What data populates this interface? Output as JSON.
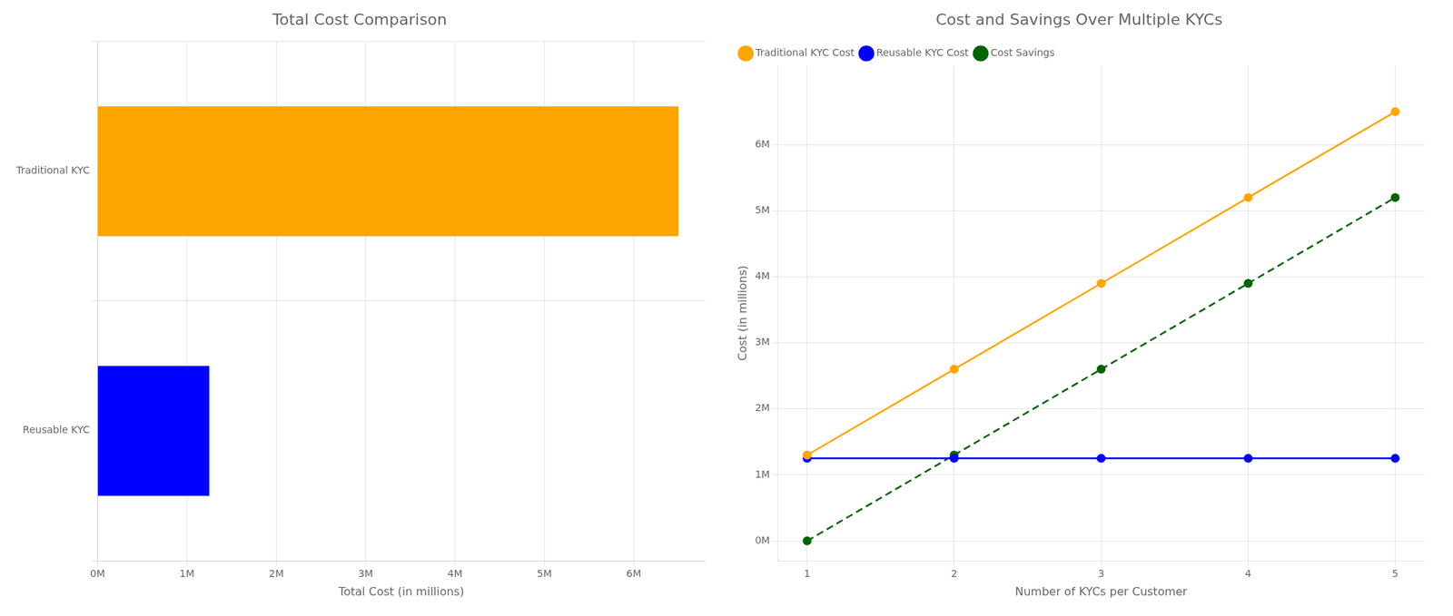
{
  "chart_data": [
    {
      "type": "bar",
      "title": "Total Cost Comparison",
      "orientation": "horizontal",
      "categories": [
        "Reusable KYC",
        "Traditional KYC"
      ],
      "values": [
        1250000,
        6500000
      ],
      "colors": [
        "#0000FF",
        "#FFA500"
      ],
      "xlabel": "Total Cost (in millions)",
      "xlim": [
        0,
        6800000
      ],
      "xticks": [
        {
          "value": 0,
          "label": "0M"
        },
        {
          "value": 1000000,
          "label": "1M"
        },
        {
          "value": 2000000,
          "label": "2M"
        },
        {
          "value": 3000000,
          "label": "3M"
        },
        {
          "value": 4000000,
          "label": "4M"
        },
        {
          "value": 5000000,
          "label": "5M"
        },
        {
          "value": 6000000,
          "label": "6M"
        }
      ],
      "grid": true
    },
    {
      "type": "line",
      "title": "Cost and Savings Over Multiple KYCs",
      "x": [
        1,
        2,
        3,
        4,
        5
      ],
      "series": [
        {
          "name": "Traditional KYC Cost",
          "color": "#FFA500",
          "values": [
            1300000,
            2600000,
            3900000,
            5200000,
            6500000
          ],
          "marker": "circle",
          "line_style": "solid"
        },
        {
          "name": "Reusable KYC Cost",
          "color": "#0000FF",
          "values": [
            1250000,
            1250000,
            1250000,
            1250000,
            1250000
          ],
          "marker": "circle",
          "line_style": "solid"
        },
        {
          "name": "Cost Savings",
          "color": "#006400",
          "values": [
            0,
            1300000,
            2600000,
            3900000,
            5200000
          ],
          "marker": "circle",
          "line_style": "dashed"
        }
      ],
      "xlabel": "Number of KYCs per Customer",
      "ylabel": "Cost (in millions)",
      "xlim": [
        0.8,
        5.2
      ],
      "xticks": [
        1,
        2,
        3,
        4,
        5
      ],
      "ylim": [
        -300000,
        7200000
      ],
      "yticks": [
        {
          "value": 0,
          "label": "0M"
        },
        {
          "value": 1000000,
          "label": "1M"
        },
        {
          "value": 2000000,
          "label": "2M"
        },
        {
          "value": 3000000,
          "label": "3M"
        },
        {
          "value": 4000000,
          "label": "4M"
        },
        {
          "value": 5000000,
          "label": "5M"
        },
        {
          "value": 6000000,
          "label": "6M"
        }
      ],
      "grid": true,
      "legend": "upper left"
    }
  ]
}
